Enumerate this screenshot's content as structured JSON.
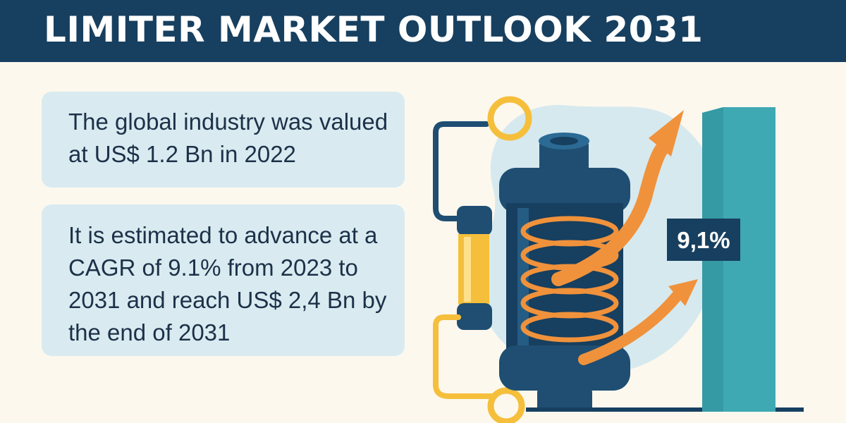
{
  "header": {
    "title": "LIMITER MARKET OUTLOOK 2031"
  },
  "cards": [
    {
      "text": "The global industry was valued at US$ 1.2 Bn in 2022"
    },
    {
      "text": "It is estimated to advance at a CAGR of 9.1% from 2023 to 2031 and reach US$ 2,4 Bn by the end of 2031"
    }
  ],
  "illustration": {
    "badge_label": "9,1%",
    "icons": [
      "limiter-cylinder-icon",
      "coil-spring-icon",
      "fuse-icon",
      "growth-arrow-icon",
      "bar-icon"
    ]
  },
  "colors": {
    "header_bg": "#173f5f",
    "background": "#fdf8ee",
    "card_bg": "#d9ebf0",
    "text": "#1c3149",
    "orange": "#f0923b",
    "yellow": "#f5bf3c",
    "teal": "#3fa9b3",
    "navy": "#1f4e72"
  }
}
